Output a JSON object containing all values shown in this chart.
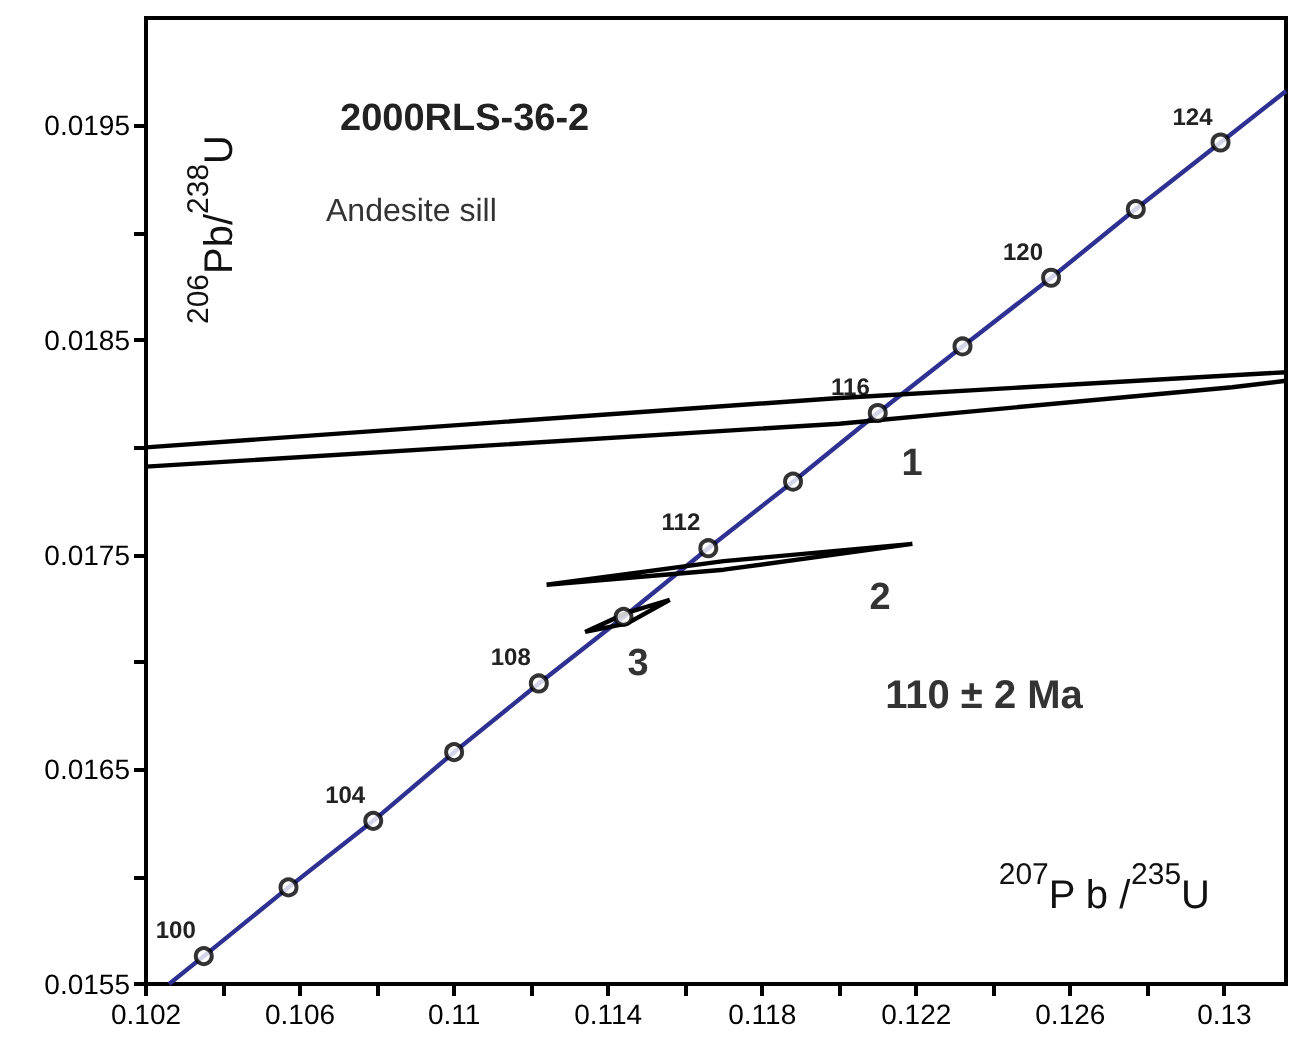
{
  "chart_data": {
    "type": "line",
    "title": "2000RLS-36-2",
    "subtitle": "Andesite sill",
    "xlabel": "$^{207}$P b /$^{235}$U",
    "ylabel": "$^{206}$Pb/$^{238}$U",
    "xlim": [
      0.102,
      0.1316
    ],
    "ylim": [
      0.0155,
      0.02
    ],
    "xticks": [
      0.102,
      {
        "value": 0.104,
        "label": null
      },
      0.106,
      {
        "value": 0.108,
        "label": null
      },
      0.11,
      {
        "value": 0.112,
        "label": null
      },
      0.114,
      {
        "value": 0.116,
        "label": null
      },
      0.118,
      {
        "value": 0.12,
        "label": null
      },
      0.122,
      {
        "value": 0.124,
        "label": null
      },
      0.126,
      {
        "value": 0.128,
        "label": null
      },
      0.13
    ],
    "yticks": [
      0.0155,
      {
        "value": 0.016,
        "label": null
      },
      0.0165,
      {
        "value": 0.017,
        "label": null
      },
      0.0175,
      {
        "value": 0.018,
        "label": null
      },
      0.0185,
      {
        "value": 0.019,
        "label": null
      },
      0.0195
    ],
    "grid": false,
    "series": [
      {
        "marker": "none",
        "color": "#2e3192",
        "x": [
          0.1026,
          0.1035,
          0.1057,
          0.1079,
          0.11,
          0.1122,
          0.1144,
          0.1166,
          0.1188,
          0.121,
          0.1232,
          0.1255,
          0.1277,
          0.1299,
          0.1316
        ],
        "values": [
          0.0155,
          0.01563,
          0.01595,
          0.01626,
          0.01658,
          0.0169,
          0.01721,
          0.01753,
          0.01784,
          0.01816,
          0.01847,
          0.01879,
          0.01911,
          0.01942,
          0.01966
        ]
      },
      {
        "type": "scatter",
        "marker": "circle",
        "color": "#000000",
        "x": [
          0.1035,
          0.1057,
          0.1079,
          0.11,
          0.1122,
          0.1144,
          0.1166,
          0.1188,
          0.121,
          0.1232,
          0.1255,
          0.1277,
          0.1299
        ],
        "values": [
          0.01563,
          0.01595,
          0.01626,
          0.01658,
          0.0169,
          0.01721,
          0.01753,
          0.01784,
          0.01816,
          0.01847,
          0.01879,
          0.01911,
          0.01942
        ]
      },
      {
        "marker": "none",
        "color": "#000000",
        "x": [
          0.102,
          0.12,
          0.1316,
          null,
          0.102,
          0.12,
          0.1302,
          0.1316
        ],
        "values": [
          0.018,
          0.01823,
          0.01835,
          null,
          0.01791,
          0.01811,
          0.01828,
          0.01831
        ]
      },
      {
        "marker": "none",
        "color": "#000000",
        "x": [
          0.1124,
          0.117,
          0.1219,
          null,
          0.1124,
          0.117,
          0.1219
        ],
        "values": [
          0.01736,
          0.01747,
          0.01755,
          null,
          0.01736,
          0.01743,
          0.01755
        ]
      },
      {
        "marker": "none",
        "color": "#000000",
        "x": [
          0.1134,
          0.1145,
          0.1156,
          null,
          0.1134,
          0.1145,
          0.1156
        ],
        "values": [
          0.01714,
          0.01723,
          0.01729,
          null,
          0.01714,
          0.01718,
          0.01729
        ]
      }
    ],
    "annotations": [
      {
        "text": "100",
        "x": 0.1035,
        "y": 0.01563
      },
      {
        "text": "104",
        "x": 0.1079,
        "y": 0.01626
      },
      {
        "text": "108",
        "x": 0.1122,
        "y": 0.0169
      },
      {
        "text": "112",
        "x": 0.1166,
        "y": 0.01753
      },
      {
        "text": "116",
        "x": 0.121,
        "y": 0.01816
      },
      {
        "text": "120",
        "x": 0.1255,
        "y": 0.01879
      },
      {
        "text": "124",
        "x": 0.1299,
        "y": 0.01942
      },
      "1",
      "2",
      "3",
      "110 ± 2 Ma"
    ]
  }
}
